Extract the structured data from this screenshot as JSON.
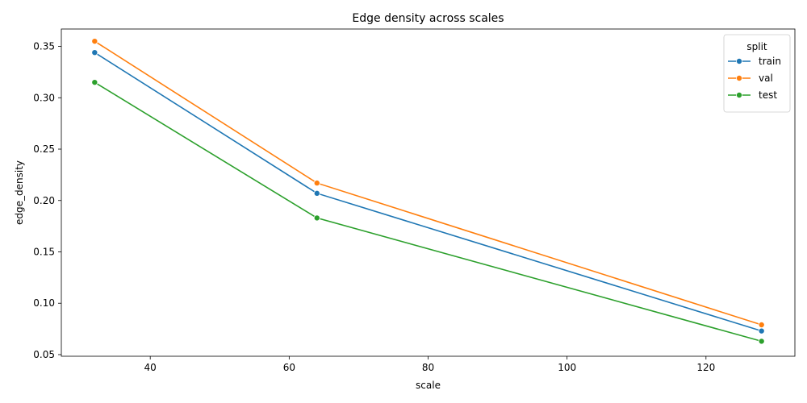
{
  "chart_data": {
    "type": "line",
    "title": "Edge density across scales",
    "xlabel": "scale",
    "ylabel": "edge_density",
    "xlim": [
      27.2,
      132.8
    ],
    "ylim": [
      0.0484,
      0.3669
    ],
    "xticks": [
      40,
      60,
      80,
      100,
      120
    ],
    "yticks": [
      0.05,
      0.1,
      0.15,
      0.2,
      0.25,
      0.3,
      0.35
    ],
    "grid": false,
    "legend": {
      "title": "split",
      "placement": "top-right"
    },
    "x": [
      32,
      64,
      128
    ],
    "series": [
      {
        "name": "train",
        "color": "#1f77b4",
        "values": [
          0.344,
          0.207,
          0.073
        ]
      },
      {
        "name": "val",
        "color": "#ff7f0e",
        "values": [
          0.355,
          0.217,
          0.079
        ]
      },
      {
        "name": "test",
        "color": "#2ca02c",
        "values": [
          0.315,
          0.183,
          0.063
        ]
      }
    ]
  }
}
